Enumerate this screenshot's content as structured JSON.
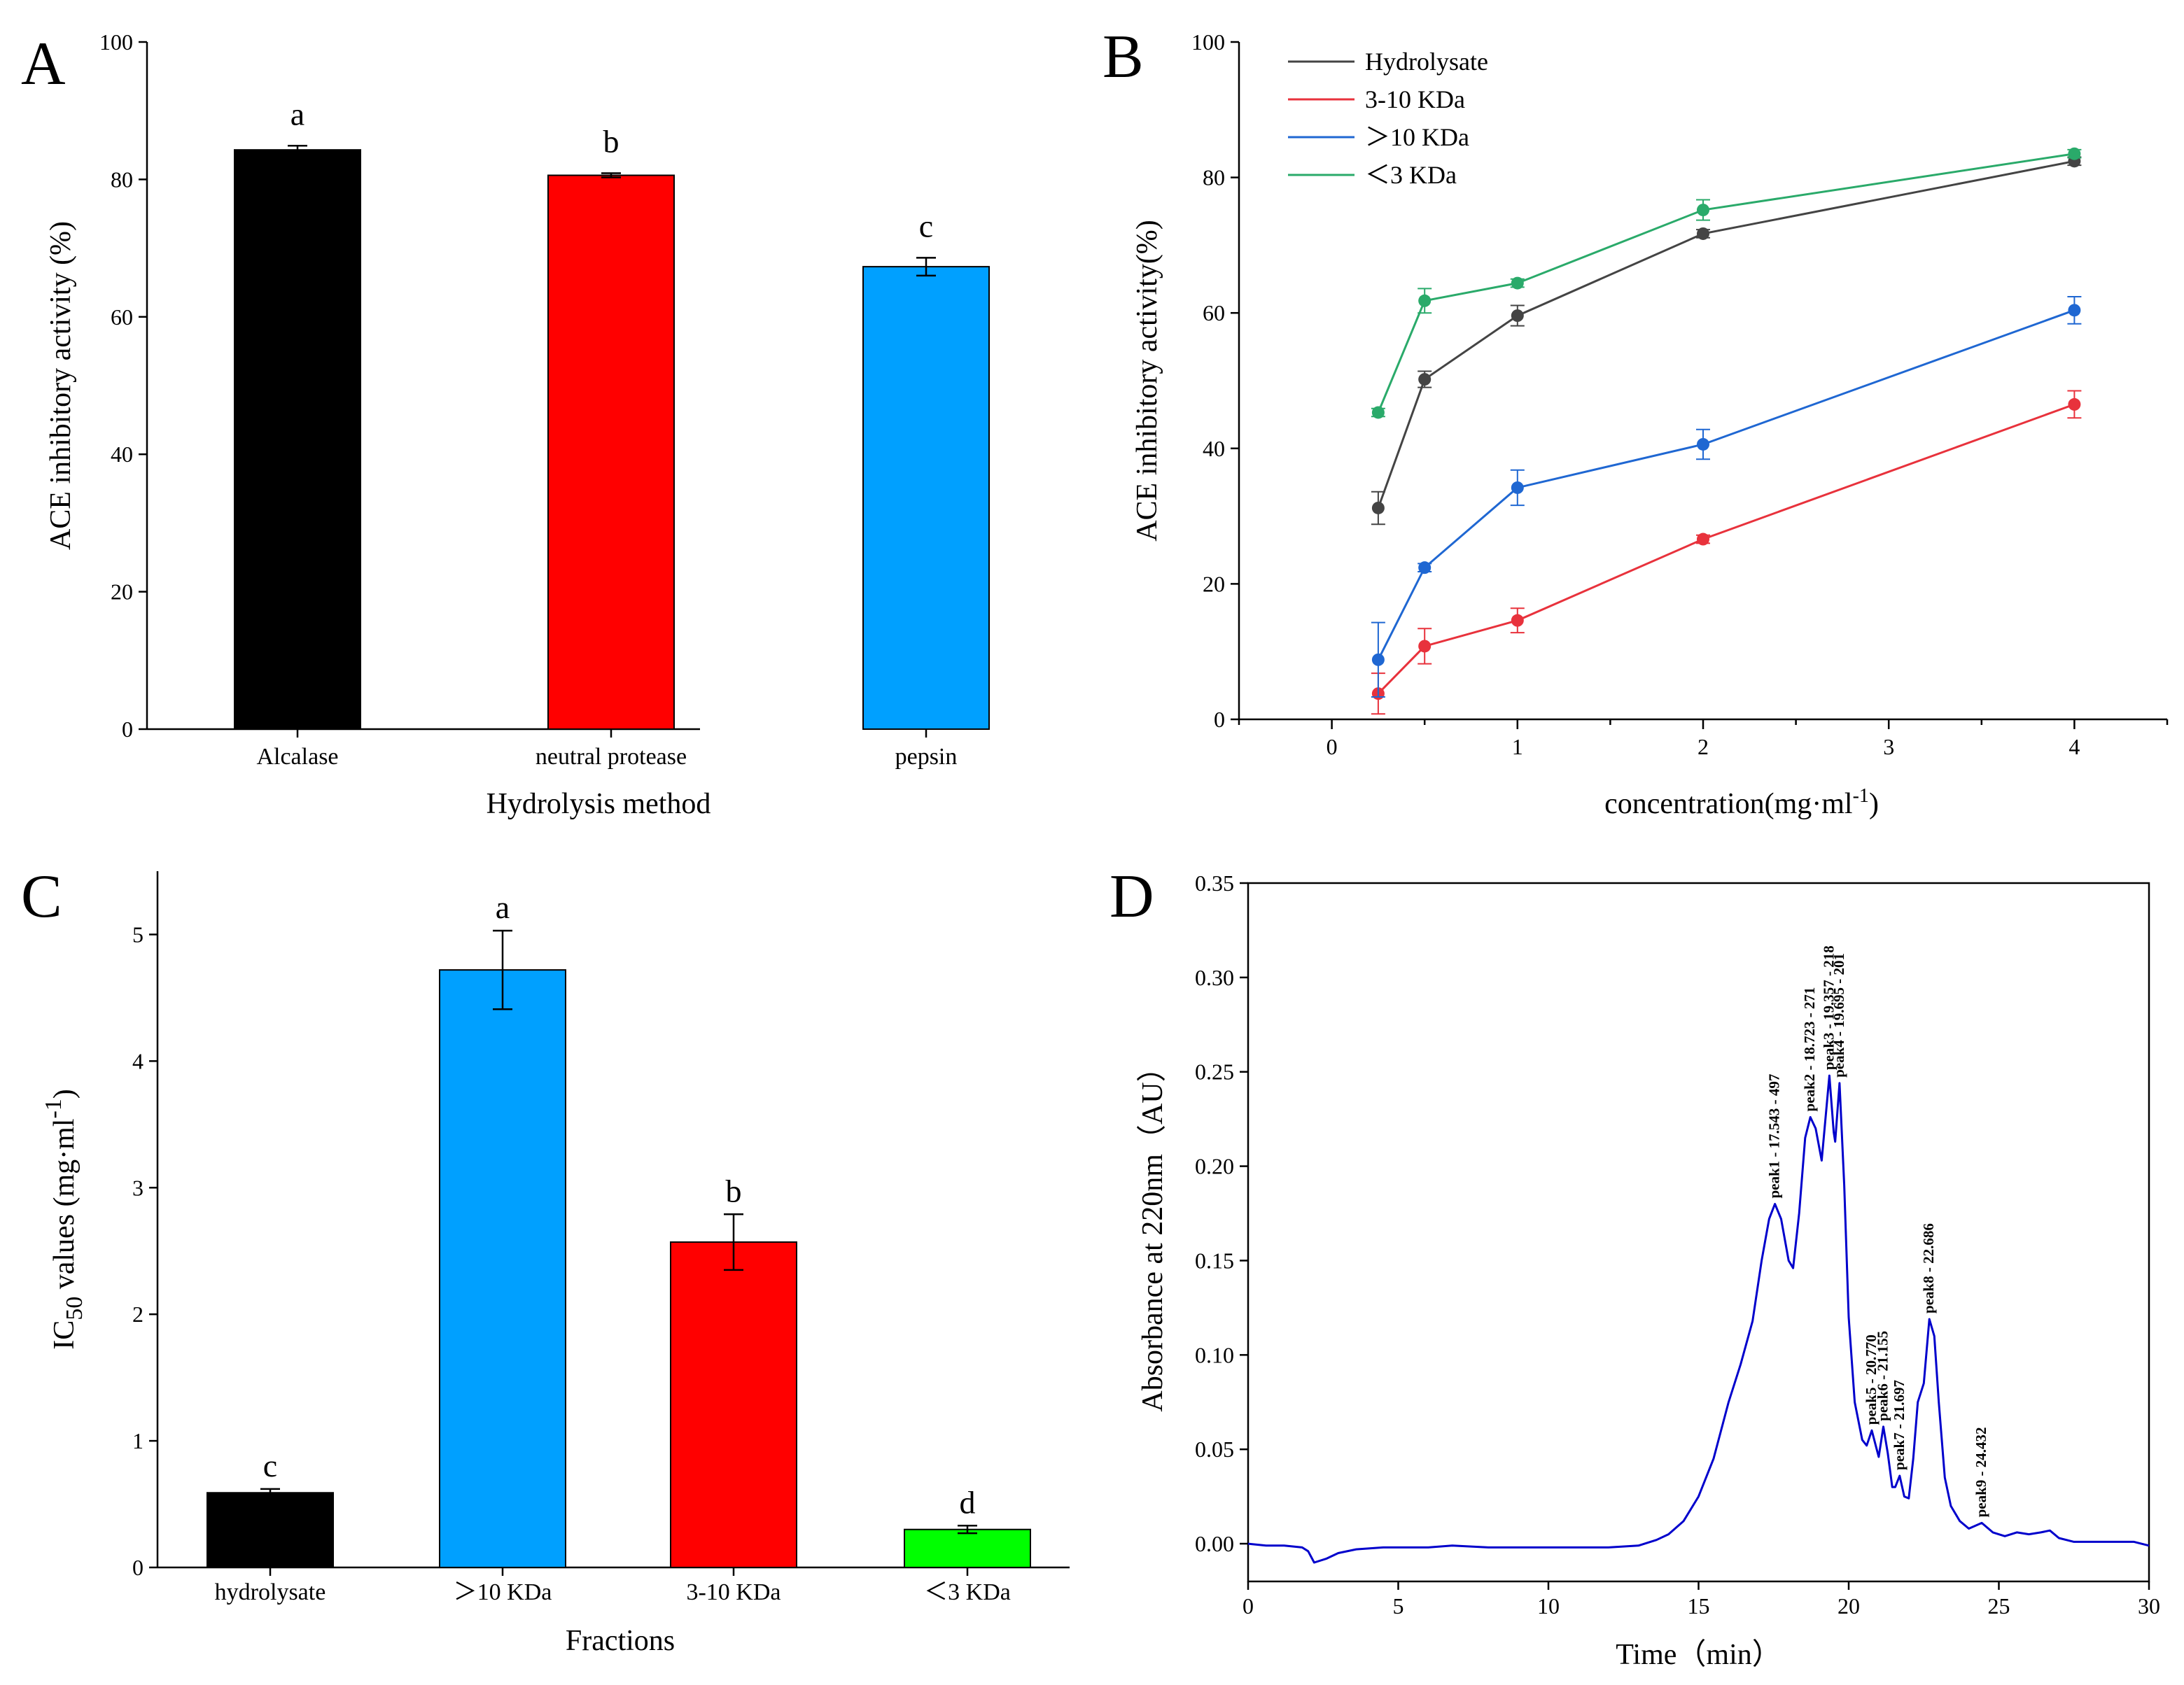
{
  "figure": {
    "panels": [
      "A",
      "B",
      "C",
      "D"
    ]
  },
  "chart_data": [
    {
      "id": "A",
      "type": "bar",
      "panel_label": "A",
      "xlabel": "Hydrolysis method",
      "ylabel": "ACE inhibitory activity (%)",
      "ylim": [
        0,
        100
      ],
      "yticks": [
        "0",
        "20",
        "40",
        "60",
        "80",
        "100"
      ],
      "categories": [
        "Alcalase",
        "neutral protease",
        "pepsin"
      ],
      "values": [
        84.3,
        80.6,
        67.3
      ],
      "errors": [
        0.6,
        0.3,
        1.3
      ],
      "letters": [
        "a",
        "b",
        "c"
      ],
      "colors": [
        "#000000",
        "#ff0000",
        "#00a0ff"
      ]
    },
    {
      "id": "B",
      "type": "line",
      "panel_label": "B",
      "xlabel": "concentration(mg·ml",
      "xlabel_sup": "-1",
      "xlabel_tail": ")",
      "ylabel": "ACE inhibitory activity(%)",
      "xlim": [
        -0.5,
        4.5
      ],
      "ylim": [
        0,
        100
      ],
      "xticks": [
        "0",
        "1",
        "2",
        "3",
        "4"
      ],
      "yticks": [
        "0",
        "20",
        "40",
        "60",
        "80",
        "100"
      ],
      "x": [
        0.25,
        0.5,
        1,
        2,
        4
      ],
      "series": [
        {
          "name": "Hydrolysate",
          "color": "#444444",
          "values": [
            31.2,
            50.2,
            59.6,
            71.7,
            82.4
          ],
          "errors": [
            2.4,
            1.2,
            1.5,
            0.6,
            0.6
          ]
        },
        {
          "name": "3-10 KDa",
          "color": "#e8323c",
          "values": [
            3.8,
            10.8,
            14.6,
            26.6,
            46.5
          ],
          "errors": [
            3.0,
            2.6,
            1.8,
            0.6,
            2.0
          ]
        },
        {
          "name": "＞10 KDa",
          "color": "#1f67d2",
          "values": [
            8.8,
            22.4,
            34.2,
            40.6,
            60.4
          ],
          "errors": [
            5.5,
            0.6,
            2.6,
            2.2,
            2.0
          ]
        },
        {
          "name": "＜3 KDa",
          "color": "#2aaa6a",
          "values": [
            45.3,
            61.8,
            64.4,
            75.2,
            83.5
          ],
          "errors": [
            0.6,
            1.8,
            0.6,
            1.5,
            0.6
          ]
        }
      ]
    },
    {
      "id": "C",
      "type": "bar",
      "panel_label": "C",
      "xlabel": "Fractions",
      "ylabel_main": "IC",
      "ylabel_sub": "50",
      "ylabel_mid": " values (mg·ml",
      "ylabel_sup": "-1",
      "ylabel_tail": ")",
      "ylim": [
        0,
        5.5
      ],
      "yticks": [
        "0",
        "1",
        "2",
        "3",
        "4",
        "5"
      ],
      "categories": [
        "hydrolysate",
        "＞10 KDa",
        "3-10 KDa",
        "＜3 KDa"
      ],
      "values": [
        0.59,
        4.72,
        2.57,
        0.3
      ],
      "errors": [
        0.03,
        0.31,
        0.22,
        0.03
      ],
      "letters": [
        "c",
        "a",
        "b",
        "d"
      ],
      "colors": [
        "#000000",
        "#00a0ff",
        "#ff0000",
        "#00ff00"
      ]
    },
    {
      "id": "D",
      "type": "line",
      "panel_label": "D",
      "xlabel": "Time（min）",
      "ylabel": "Absorbance at 220nm（AU）",
      "xlim": [
        0,
        30
      ],
      "ylim": [
        -0.02,
        0.35
      ],
      "xticks": [
        "0",
        "5",
        "10",
        "15",
        "20",
        "25",
        "30"
      ],
      "yticks": [
        "0.00",
        "0.05",
        "0.10",
        "0.15",
        "0.20",
        "0.25",
        "0.30",
        "0.35"
      ],
      "color": "#0000cc",
      "trace": [
        [
          0,
          0.0
        ],
        [
          0.6,
          -0.001
        ],
        [
          1.2,
          -0.001
        ],
        [
          1.8,
          -0.002
        ],
        [
          2.0,
          -0.004
        ],
        [
          2.2,
          -0.01
        ],
        [
          2.6,
          -0.008
        ],
        [
          3.0,
          -0.005
        ],
        [
          3.6,
          -0.003
        ],
        [
          4.5,
          -0.002
        ],
        [
          6.0,
          -0.002
        ],
        [
          6.8,
          -0.001
        ],
        [
          8.0,
          -0.002
        ],
        [
          10.0,
          -0.002
        ],
        [
          12.0,
          -0.002
        ],
        [
          13.0,
          -0.001
        ],
        [
          13.6,
          0.002
        ],
        [
          14.0,
          0.005
        ],
        [
          14.5,
          0.012
        ],
        [
          15.0,
          0.025
        ],
        [
          15.5,
          0.045
        ],
        [
          16.0,
          0.075
        ],
        [
          16.4,
          0.095
        ],
        [
          16.8,
          0.118
        ],
        [
          17.1,
          0.15
        ],
        [
          17.35,
          0.172
        ],
        [
          17.543,
          0.18
        ],
        [
          17.75,
          0.172
        ],
        [
          18.0,
          0.15
        ],
        [
          18.15,
          0.146
        ],
        [
          18.35,
          0.175
        ],
        [
          18.55,
          0.215
        ],
        [
          18.723,
          0.226
        ],
        [
          18.9,
          0.22
        ],
        [
          19.1,
          0.203
        ],
        [
          19.357,
          0.248
        ],
        [
          19.5,
          0.218
        ],
        [
          19.55,
          0.213
        ],
        [
          19.695,
          0.244
        ],
        [
          19.85,
          0.19
        ],
        [
          20.0,
          0.12
        ],
        [
          20.2,
          0.075
        ],
        [
          20.45,
          0.055
        ],
        [
          20.6,
          0.052
        ],
        [
          20.77,
          0.06
        ],
        [
          20.9,
          0.052
        ],
        [
          21.0,
          0.046
        ],
        [
          21.155,
          0.062
        ],
        [
          21.3,
          0.048
        ],
        [
          21.45,
          0.03
        ],
        [
          21.55,
          0.03
        ],
        [
          21.697,
          0.036
        ],
        [
          21.85,
          0.025
        ],
        [
          22.0,
          0.024
        ],
        [
          22.15,
          0.045
        ],
        [
          22.3,
          0.075
        ],
        [
          22.5,
          0.085
        ],
        [
          22.686,
          0.119
        ],
        [
          22.85,
          0.11
        ],
        [
          23.0,
          0.075
        ],
        [
          23.2,
          0.035
        ],
        [
          23.4,
          0.02
        ],
        [
          23.7,
          0.012
        ],
        [
          24.0,
          0.008
        ],
        [
          24.432,
          0.011
        ],
        [
          24.8,
          0.006
        ],
        [
          25.2,
          0.004
        ],
        [
          25.6,
          0.006
        ],
        [
          26.0,
          0.005
        ],
        [
          26.4,
          0.006
        ],
        [
          26.7,
          0.007
        ],
        [
          27.0,
          0.003
        ],
        [
          27.5,
          0.001
        ],
        [
          28.5,
          0.001
        ],
        [
          29.5,
          0.001
        ],
        [
          30.0,
          -0.001
        ]
      ],
      "peaks": [
        {
          "label": "peak1 - 17.543 - 497",
          "x": 17.543,
          "y": 0.18
        },
        {
          "label": "peak2 - 18.723 - 271",
          "x": 18.723,
          "y": 0.226
        },
        {
          "label": "peak3 - 19.357 - 218",
          "x": 19.357,
          "y": 0.248
        },
        {
          "label": "peak4 - 19.695 - 201",
          "x": 19.695,
          "y": 0.244
        },
        {
          "label": "peak5 - 20.770",
          "x": 20.77,
          "y": 0.06
        },
        {
          "label": "peak6 - 21.155",
          "x": 21.155,
          "y": 0.062
        },
        {
          "label": "peak7 - 21.697",
          "x": 21.697,
          "y": 0.036
        },
        {
          "label": "peak8 - 22.686",
          "x": 22.686,
          "y": 0.119
        },
        {
          "label": "peak9 - 24.432",
          "x": 24.432,
          "y": 0.011
        }
      ]
    }
  ]
}
